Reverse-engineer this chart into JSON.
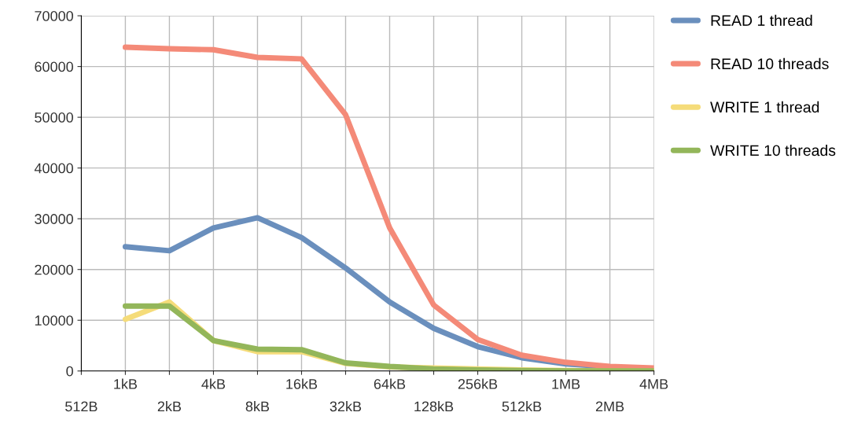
{
  "chart_data": {
    "type": "line",
    "categories": [
      "512B",
      "1kB",
      "2kB",
      "4kB",
      "8kB",
      "16kB",
      "32kB",
      "64kB",
      "128kB",
      "256kB",
      "512kB",
      "1MB",
      "2MB",
      "4MB"
    ],
    "series": [
      {
        "name": "READ 1 thread",
        "color": "#6a8fbd",
        "values": [
          null,
          24500,
          23700,
          28200,
          30200,
          26300,
          20300,
          13600,
          8400,
          4800,
          2600,
          1400,
          800,
          null
        ]
      },
      {
        "name": "READ 10 threads",
        "color": "#f48a78",
        "values": [
          null,
          63800,
          63500,
          63300,
          61800,
          61500,
          50500,
          28200,
          13000,
          6200,
          3100,
          1700,
          900,
          600
        ]
      },
      {
        "name": "WRITE 1 thread",
        "color": "#f5dc7a",
        "values": [
          null,
          10200,
          13600,
          6000,
          3800,
          3800,
          1500,
          800,
          600,
          400,
          200,
          100,
          0,
          0
        ]
      },
      {
        "name": "WRITE 10 threads",
        "color": "#93b65a",
        "values": [
          null,
          12800,
          12800,
          6000,
          4300,
          4200,
          1600,
          900,
          400,
          200,
          100,
          0,
          0,
          0
        ]
      }
    ],
    "ylim": [
      0,
      70000
    ],
    "yticks": [
      0,
      10000,
      20000,
      30000,
      40000,
      50000,
      60000,
      70000
    ],
    "grid": true,
    "legend": "right",
    "marker": "none",
    "line_style": "solid"
  }
}
